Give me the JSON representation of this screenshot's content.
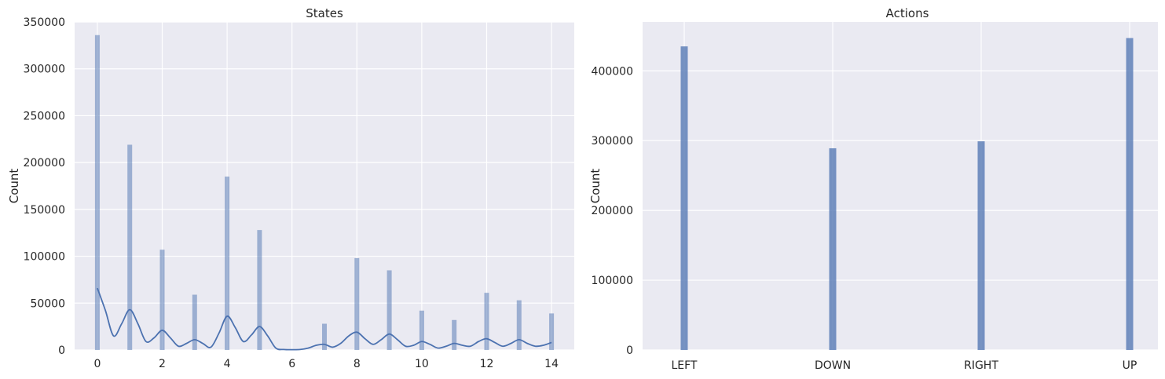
{
  "colors": {
    "plot_background": "#eaeaf2",
    "grid": "#ffffff",
    "bar": "#4c72b0",
    "kde": "#4c72b0",
    "text": "#262626"
  },
  "chart_data": [
    {
      "type": "bar",
      "title": "States",
      "xlabel": "",
      "ylabel": "Count",
      "xlim": [
        -0.7,
        14.7
      ],
      "ylim": [
        0,
        350000
      ],
      "x_ticks": [
        0,
        2,
        4,
        6,
        8,
        10,
        12,
        14
      ],
      "x_tick_labels": [
        "0",
        "2",
        "4",
        "6",
        "8",
        "10",
        "12",
        "14"
      ],
      "y_ticks": [
        0,
        50000,
        100000,
        150000,
        200000,
        250000,
        300000,
        350000
      ],
      "y_tick_labels": [
        "0",
        "50000",
        "100000",
        "150000",
        "200000",
        "250000",
        "300000",
        "350000"
      ],
      "grid": true,
      "bar_opacity": 0.5,
      "x": [
        0,
        1,
        2,
        3,
        4,
        5,
        6,
        7,
        8,
        9,
        10,
        11,
        12,
        13,
        14
      ],
      "values": [
        336000,
        219000,
        107000,
        59000,
        185000,
        128000,
        0,
        28000,
        98000,
        85000,
        42000,
        32000,
        61000,
        53000,
        39000
      ],
      "kde": {
        "x": [
          0,
          0.25,
          0.5,
          0.75,
          1,
          1.25,
          1.5,
          1.75,
          2,
          2.25,
          2.5,
          2.75,
          3,
          3.25,
          3.5,
          3.75,
          4,
          4.25,
          4.5,
          4.75,
          5,
          5.25,
          5.5,
          5.75,
          6,
          6.25,
          6.5,
          6.75,
          7,
          7.25,
          7.5,
          7.75,
          8,
          8.25,
          8.5,
          8.75,
          9,
          9.25,
          9.5,
          9.75,
          10,
          10.25,
          10.5,
          10.75,
          11,
          11.25,
          11.5,
          11.75,
          12,
          12.25,
          12.5,
          12.75,
          13,
          13.25,
          13.5,
          13.75,
          14
        ],
        "y": [
          66000,
          42000,
          15000,
          28000,
          43000,
          28000,
          9000,
          13000,
          21000,
          13000,
          4000,
          7000,
          11000,
          7000,
          3000,
          18000,
          36000,
          24000,
          9000,
          16000,
          25000,
          15000,
          2000,
          500,
          300,
          500,
          2000,
          5000,
          6000,
          3000,
          7000,
          15000,
          19000,
          12000,
          6000,
          11000,
          17000,
          11000,
          4000,
          5000,
          9000,
          6000,
          2000,
          4000,
          7000,
          5000,
          4000,
          9000,
          12000,
          8000,
          4000,
          7000,
          11000,
          7000,
          4000,
          5000,
          8000
        ]
      }
    },
    {
      "type": "bar",
      "title": "Actions",
      "xlabel": "",
      "ylabel": "Count",
      "ylim": [
        0,
        470000
      ],
      "y_ticks": [
        0,
        100000,
        200000,
        300000,
        400000
      ],
      "y_tick_labels": [
        "0",
        "100000",
        "200000",
        "300000",
        "400000"
      ],
      "grid": true,
      "bar_opacity": 0.75,
      "categories": [
        "LEFT",
        "DOWN",
        "RIGHT",
        "UP"
      ],
      "values": [
        435000,
        289000,
        299000,
        447000
      ]
    }
  ]
}
